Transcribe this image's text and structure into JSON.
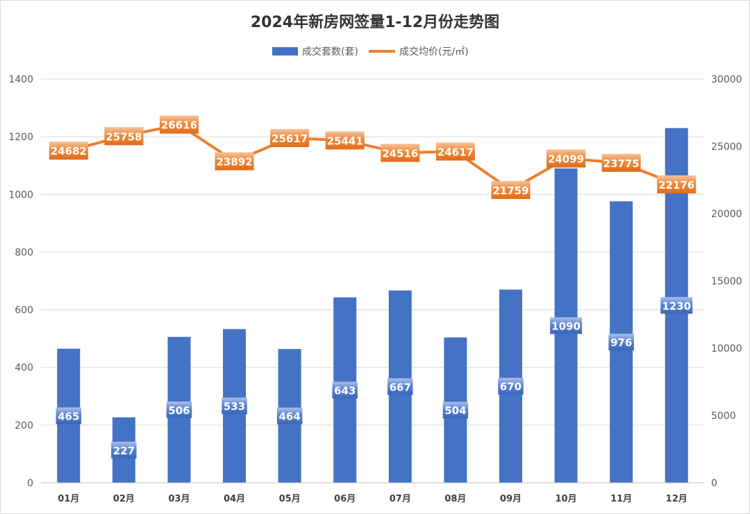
{
  "chart_data": {
    "type": "bar",
    "title": "2024年新房网签量1-12月份走势图",
    "categories": [
      "01月",
      "02月",
      "03月",
      "04月",
      "05月",
      "06月",
      "07月",
      "08月",
      "09月",
      "10月",
      "11月",
      "12月"
    ],
    "series": [
      {
        "name": "成交套数(套)",
        "type": "bar",
        "axis": "left",
        "color": "#4472c4",
        "values": [
          465,
          227,
          506,
          533,
          464,
          643,
          667,
          504,
          670,
          1090,
          976,
          1230
        ]
      },
      {
        "name": "成交均价(元/㎡)",
        "type": "line",
        "axis": "right",
        "color": "#ed7d31",
        "values": [
          24682,
          25758,
          26616,
          23892,
          25617,
          25441,
          24516,
          24617,
          21759,
          24099,
          23775,
          22176
        ]
      }
    ],
    "y_left": {
      "min": 0,
      "max": 1400,
      "ticks": [
        0,
        200,
        400,
        600,
        800,
        1000,
        1200,
        1400
      ]
    },
    "y_right": {
      "min": 0,
      "max": 30000,
      "ticks": [
        0,
        5000,
        10000,
        15000,
        20000,
        25000,
        30000
      ]
    },
    "grid": true,
    "legend_position": "top"
  }
}
